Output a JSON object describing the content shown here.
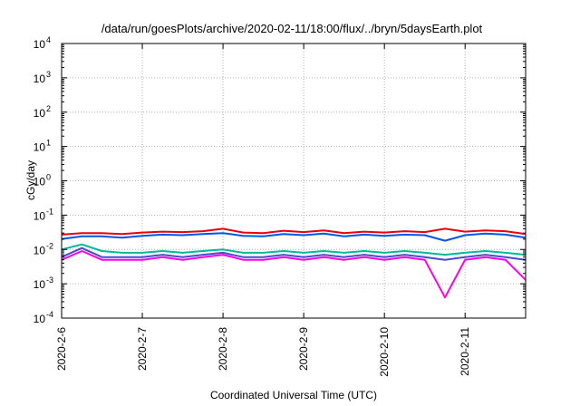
{
  "chart_data": {
    "type": "line",
    "title": "/data/run/goesPlots/archive/2020-02-11/18:00/flux/../bryn/5daysEarth.plot",
    "xlabel": "Coordinated Universal Time (UTC)",
    "ylabel": "cGy/day",
    "yscale": "log",
    "ylim": [
      0.0001,
      10000
    ],
    "y_ticks": [
      {
        "base": "10",
        "exp": "-4",
        "value": 0.0001
      },
      {
        "base": "10",
        "exp": "-3",
        "value": 0.001
      },
      {
        "base": "10",
        "exp": "-2",
        "value": 0.01
      },
      {
        "base": "10",
        "exp": "-1",
        "value": 0.1
      },
      {
        "base": "10",
        "exp": "0",
        "value": 1
      },
      {
        "base": "10",
        "exp": "1",
        "value": 10
      },
      {
        "base": "10",
        "exp": "2",
        "value": 100
      },
      {
        "base": "10",
        "exp": "3",
        "value": 1000
      },
      {
        "base": "10",
        "exp": "4",
        "value": 10000
      }
    ],
    "xlim": [
      "2020-02-06 00:00",
      "2020-02-11 18:00"
    ],
    "x_ticks": [
      "2020-2-6",
      "2020-2-7",
      "2020-2-8",
      "2020-2-9",
      "2020-2-10",
      "2020-2-11"
    ],
    "grid": true,
    "x": [
      "2020-02-06 00:00",
      "2020-02-06 06:00",
      "2020-02-06 12:00",
      "2020-02-06 18:00",
      "2020-02-07 00:00",
      "2020-02-07 06:00",
      "2020-02-07 12:00",
      "2020-02-07 18:00",
      "2020-02-08 00:00",
      "2020-02-08 06:00",
      "2020-02-08 12:00",
      "2020-02-08 18:00",
      "2020-02-09 00:00",
      "2020-02-09 06:00",
      "2020-02-09 12:00",
      "2020-02-09 18:00",
      "2020-02-10 00:00",
      "2020-02-10 06:00",
      "2020-02-10 12:00",
      "2020-02-10 18:00",
      "2020-02-11 00:00",
      "2020-02-11 06:00",
      "2020-02-11 12:00",
      "2020-02-11 18:00"
    ],
    "series": [
      {
        "color": "#e8000b",
        "values": [
          0.027,
          0.03,
          0.03,
          0.028,
          0.031,
          0.033,
          0.032,
          0.034,
          0.04,
          0.031,
          0.03,
          0.035,
          0.032,
          0.036,
          0.03,
          0.033,
          0.031,
          0.034,
          0.032,
          0.04,
          0.033,
          0.036,
          0.034,
          0.028
        ]
      },
      {
        "color": "#0057e8",
        "values": [
          0.02,
          0.024,
          0.024,
          0.022,
          0.025,
          0.027,
          0.026,
          0.028,
          0.03,
          0.025,
          0.024,
          0.028,
          0.026,
          0.029,
          0.024,
          0.027,
          0.025,
          0.027,
          0.026,
          0.018,
          0.026,
          0.029,
          0.027,
          0.022
        ]
      },
      {
        "color": "#00b89a",
        "values": [
          0.01,
          0.014,
          0.009,
          0.008,
          0.008,
          0.009,
          0.008,
          0.009,
          0.01,
          0.008,
          0.008,
          0.009,
          0.008,
          0.009,
          0.008,
          0.009,
          0.008,
          0.009,
          0.008,
          0.007,
          0.008,
          0.009,
          0.008,
          0.007
        ]
      },
      {
        "color": "#4a4ad0",
        "values": [
          0.006,
          0.011,
          0.006,
          0.006,
          0.006,
          0.007,
          0.006,
          0.007,
          0.008,
          0.006,
          0.006,
          0.007,
          0.006,
          0.007,
          0.006,
          0.007,
          0.006,
          0.007,
          0.006,
          0.005,
          0.006,
          0.007,
          0.006,
          0.005
        ]
      },
      {
        "color": "#ff00e6",
        "values": [
          0.005,
          0.009,
          0.005,
          0.005,
          0.005,
          0.006,
          0.005,
          0.006,
          0.007,
          0.005,
          0.005,
          0.006,
          0.005,
          0.006,
          0.005,
          0.006,
          0.005,
          0.006,
          0.005,
          0.0004,
          0.005,
          0.006,
          0.005,
          0.0013
        ]
      }
    ]
  }
}
